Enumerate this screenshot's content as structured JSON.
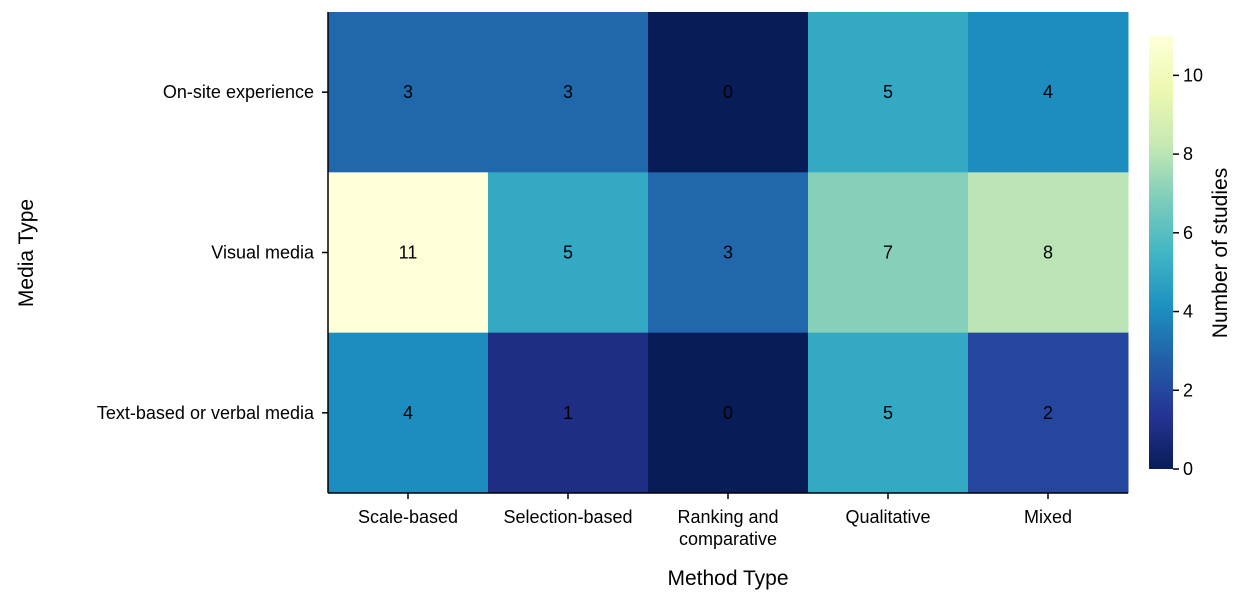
{
  "chart_data": {
    "type": "heatmap",
    "title": "",
    "xlabel": "Method Type",
    "ylabel": "Media Type",
    "x_categories": [
      "Scale-based",
      "Selection-based",
      "Ranking and comparative",
      "Qualitative",
      "Mixed"
    ],
    "y_categories": [
      "On-site experience",
      "Visual media",
      "Text-based or verbal media"
    ],
    "values": [
      [
        3,
        3,
        0,
        5,
        4
      ],
      [
        11,
        5,
        3,
        7,
        8
      ],
      [
        4,
        1,
        0,
        5,
        2
      ]
    ],
    "colorbar": {
      "label": "Number of studies",
      "range": [
        0,
        11
      ],
      "ticks": [
        0,
        2,
        4,
        6,
        8,
        10
      ],
      "colormap": "YlGnBu"
    },
    "annotate_cells": true
  }
}
